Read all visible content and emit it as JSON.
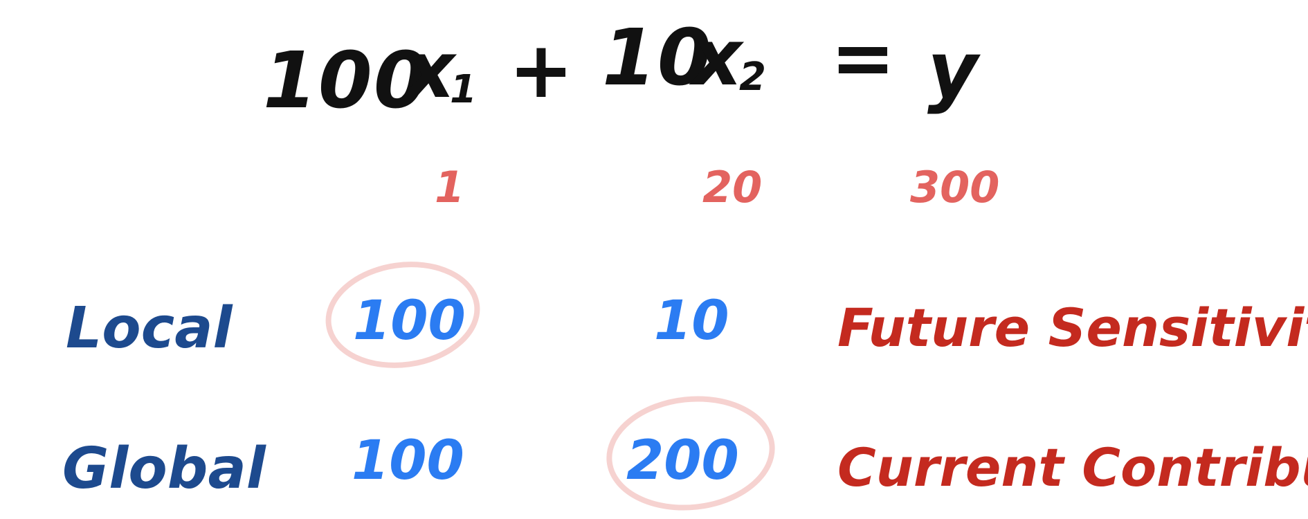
{
  "equation": {
    "coef1": "100",
    "var1": "x",
    "sub1": "1",
    "plus": "+",
    "coef2": "10",
    "var2": "x",
    "sub2": "2",
    "equals": "=",
    "result": "y"
  },
  "values": {
    "x1": "1",
    "x2": "20",
    "y": "300"
  },
  "rows": [
    {
      "label": "Local",
      "term1": "100",
      "term2": "10",
      "description": "Future Sensitivity",
      "circled_term": 1
    },
    {
      "label": "Global",
      "term1": "100",
      "term2": "200",
      "description": "Current Contribution",
      "circled_term": 2
    }
  ],
  "colors": {
    "equation": "#111111",
    "values": "#e3635f",
    "row_labels": "#1d4a8e",
    "terms": "#2b7cf2",
    "descriptions": "#c42a1f",
    "circle": "#f6d2d0"
  }
}
